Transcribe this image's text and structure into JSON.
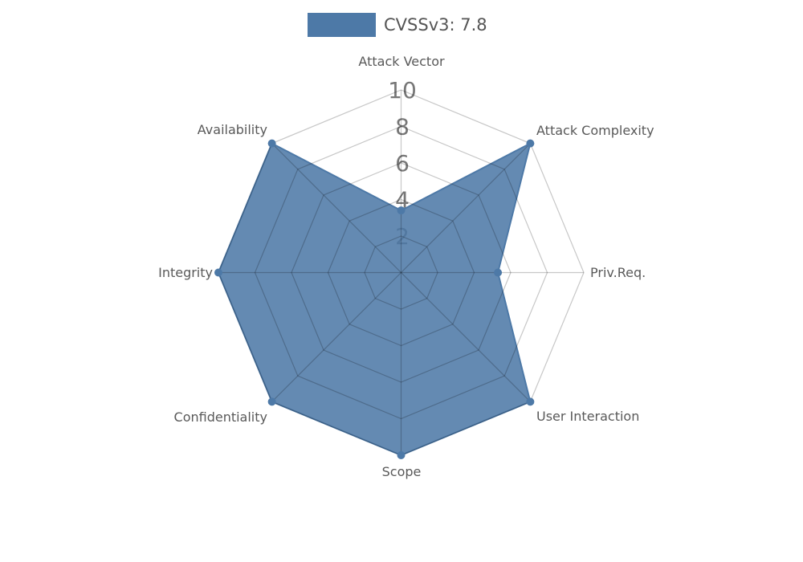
{
  "legend": {
    "label": "CVSSv3: 7.8",
    "swatch_color": "#4d79a7"
  },
  "chart_data": {
    "type": "radar",
    "title": "CVSSv3: 7.8",
    "categories": [
      "Attack Vector",
      "Attack Complexity",
      "Priv.Req.",
      "User Interaction",
      "Scope",
      "Confidentiality",
      "Integrity",
      "Availability"
    ],
    "series": [
      {
        "name": "CVSSv3: 7.8",
        "values": [
          3.4,
          10,
          5.3,
          10,
          10,
          10,
          10,
          10
        ]
      }
    ],
    "radial_ticks": [
      2,
      4,
      6,
      8,
      10
    ],
    "rlim": [
      0,
      10
    ],
    "grid": true,
    "legend_position": "top-center",
    "fill_color": "#4d79a7",
    "fill_opacity": 0.87,
    "stroke_color": "#4d79a7",
    "grid_color": "rgba(0,0,0,0.22)",
    "axis_label_color": "#595959",
    "tick_label_color": "#777777",
    "tick_box_color": "#ffffff"
  }
}
